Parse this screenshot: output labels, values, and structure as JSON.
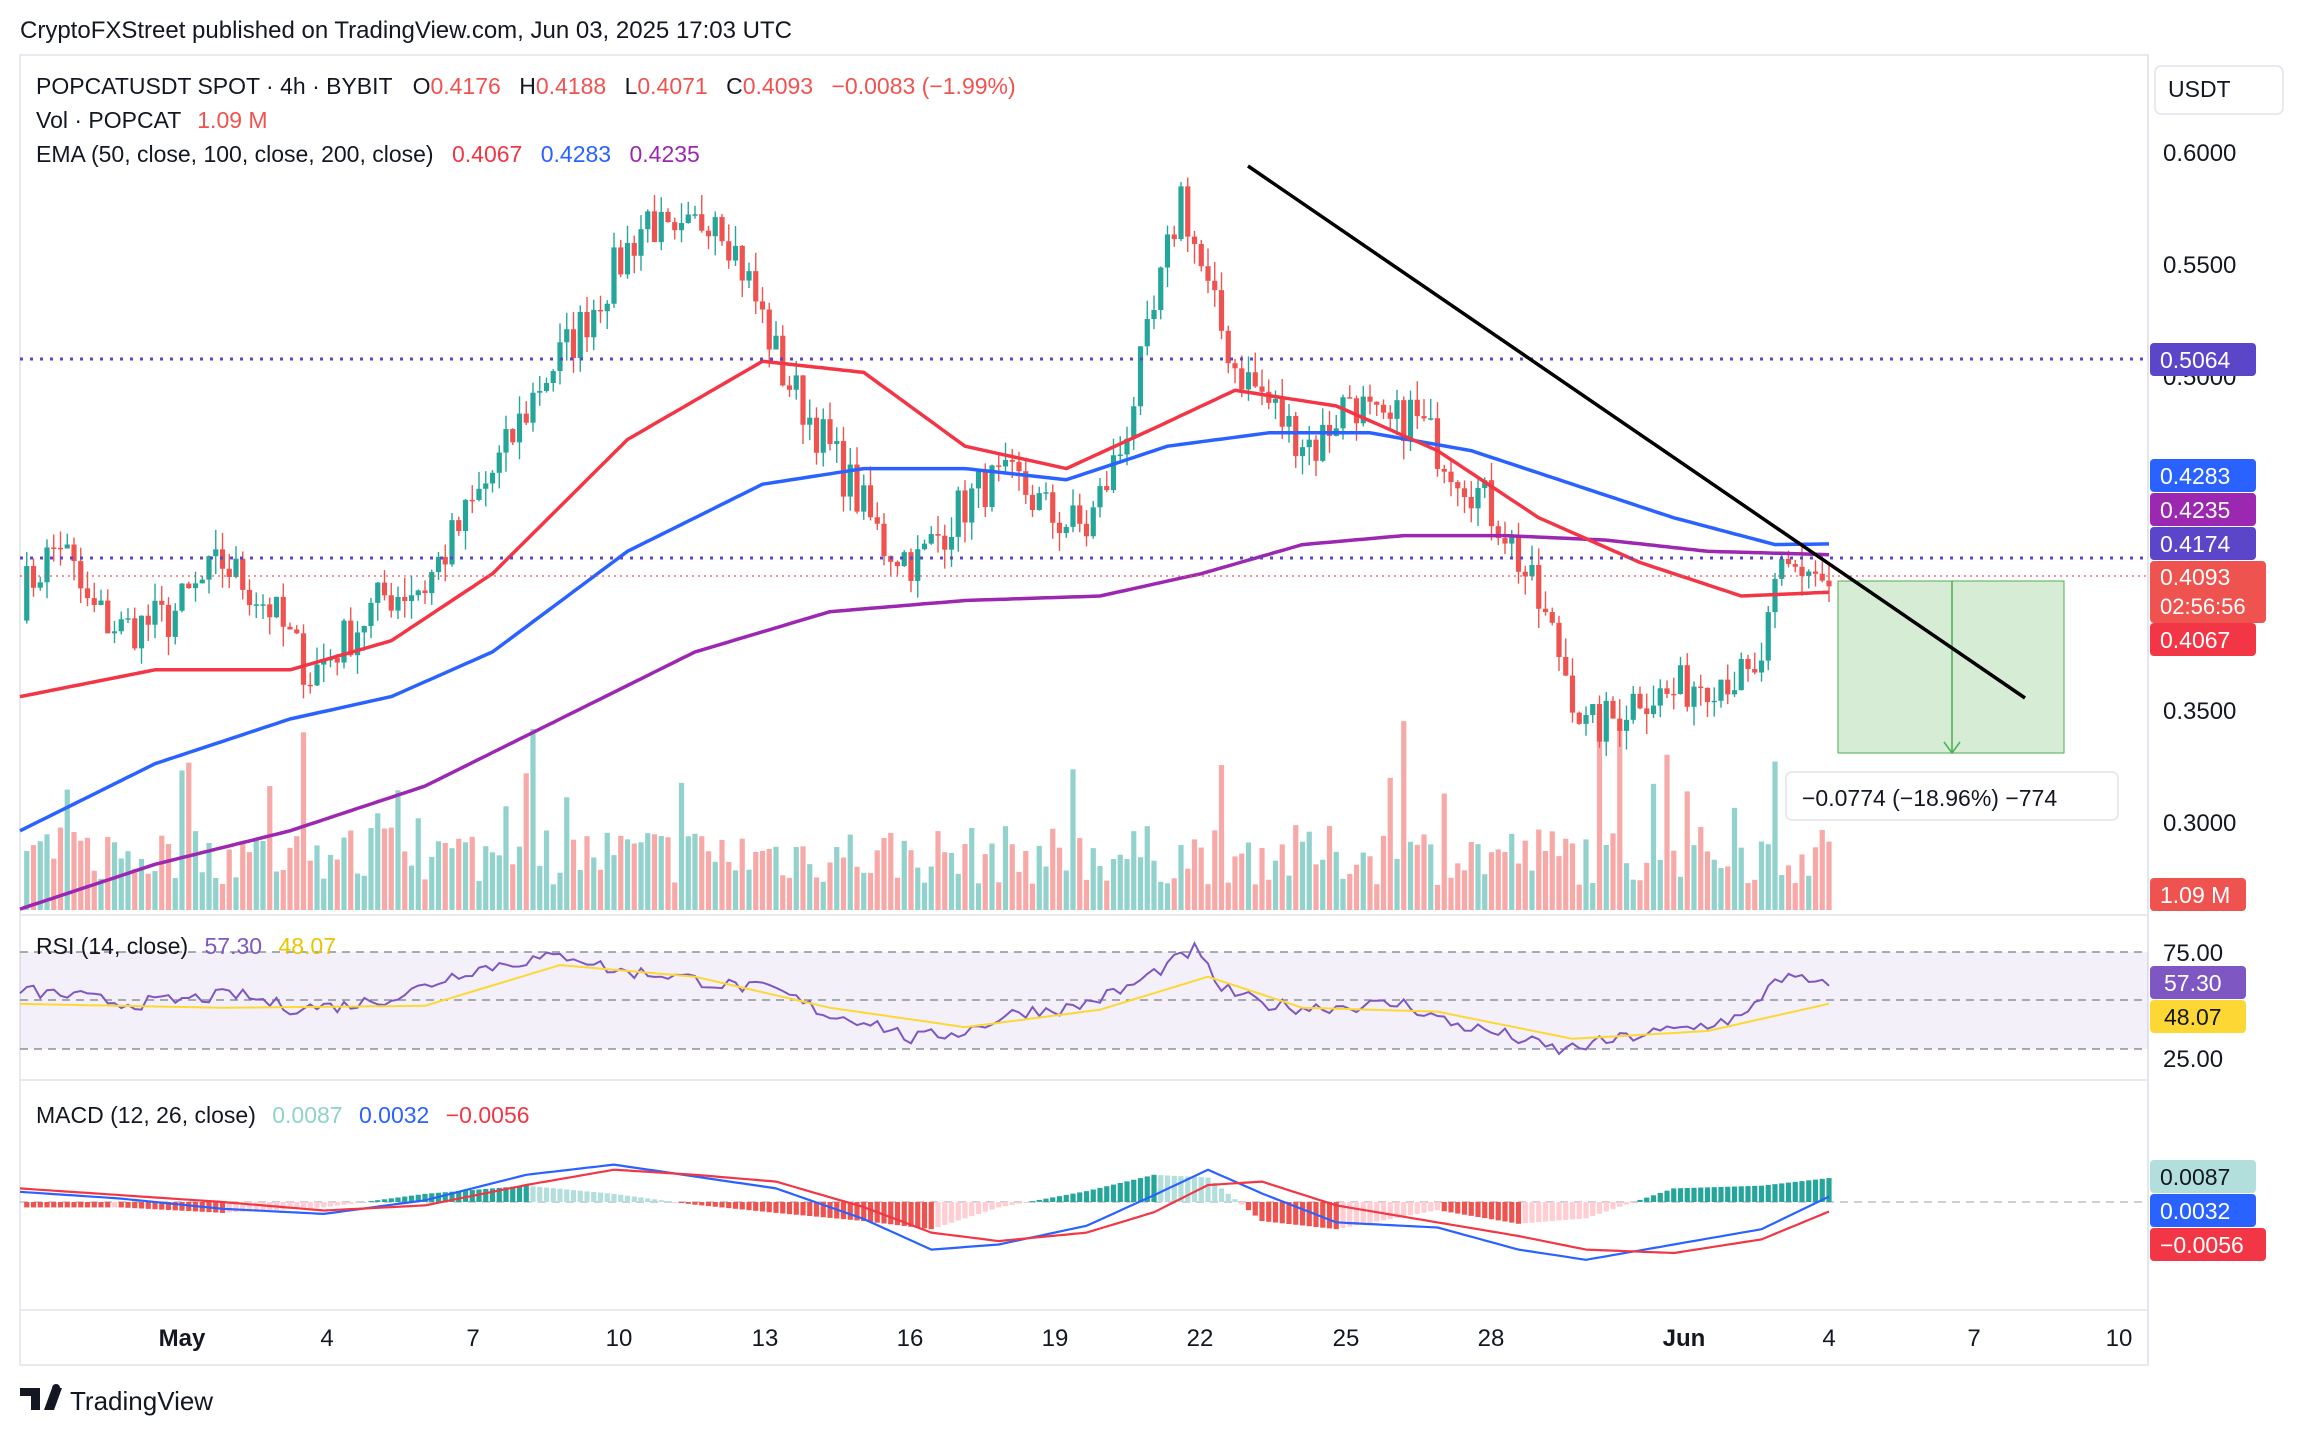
{
  "header": {
    "published_line": "CryptoFXStreet published on TradingView.com, Jun 03, 2025 17:03 UTC"
  },
  "legend": {
    "symbol": "POPCATUSDT SPOT · 4h · BYBIT",
    "o_label": "O",
    "o_value": "0.4176",
    "h_label": "H",
    "h_value": "0.4188",
    "l_label": "L",
    "l_value": "0.4071",
    "c_label": "C",
    "c_value": "0.4093",
    "change": "−0.0083 (−1.99%)",
    "vol_label": "Vol · POPCAT",
    "vol_value": "1.09 M",
    "ema_label": "EMA (50, close, 100, close, 200, close)",
    "ema50": "0.4067",
    "ema100": "0.4283",
    "ema200": "0.4235"
  },
  "axis": {
    "currency": "USDT",
    "price_ticks": [
      "0.6000",
      "0.5500",
      "0.5000",
      "0.3500",
      "0.3000"
    ],
    "rsi_ticks": [
      "75.00",
      "25.00"
    ],
    "time_ticks": [
      "May",
      "4",
      "7",
      "10",
      "13",
      "16",
      "19",
      "22",
      "25",
      "28",
      "Jun",
      "4",
      "7",
      "10"
    ]
  },
  "price_labels": {
    "resistance": "0.5064",
    "ema100": "0.4283",
    "ema200": "0.4235",
    "level": "0.4174",
    "last": "0.4093",
    "countdown": "02:56:56",
    "ema50": "0.4067",
    "volume": "1.09 M"
  },
  "measure": {
    "label": "−0.0774 (−18.96%) −774"
  },
  "rsi": {
    "label": "RSI (14, close)",
    "value": "57.30",
    "ma": "48.07"
  },
  "macd": {
    "label": "MACD (12, 26, close)",
    "hist": "0.0087",
    "macd": "0.0032",
    "signal": "−0.0056"
  },
  "footer": {
    "brand": "TradingView"
  },
  "colors": {
    "up": "#26a69a",
    "down": "#ef5350",
    "ema50": "#f23645",
    "ema100": "#2962ff",
    "ema200": "#9c27b0",
    "rsi": "#7e57c2",
    "rsi_ma": "#fdd835",
    "dotted_level": "#5b45c9",
    "trendline": "#000000",
    "target_zone": "#d6ecd4"
  },
  "chart_data": {
    "type": "candlestick",
    "symbol": "POPCATUSDT",
    "interval": "4h",
    "ylim": [
      0.265,
      0.625
    ],
    "x_dates": [
      "May",
      "4",
      "7",
      "10",
      "13",
      "16",
      "19",
      "22",
      "25",
      "28",
      "Jun",
      "4",
      "7",
      "10"
    ],
    "price_path": [
      [
        0,
        0.405
      ],
      [
        6,
        0.43
      ],
      [
        10,
        0.4
      ],
      [
        15,
        0.39
      ],
      [
        22,
        0.395
      ],
      [
        30,
        0.42
      ],
      [
        37,
        0.4
      ],
      [
        43,
        0.37
      ],
      [
        48,
        0.385
      ],
      [
        54,
        0.405
      ],
      [
        60,
        0.41
      ],
      [
        65,
        0.435
      ],
      [
        72,
        0.47
      ],
      [
        77,
        0.5
      ],
      [
        82,
        0.52
      ],
      [
        87,
        0.545
      ],
      [
        93,
        0.575
      ],
      [
        97,
        0.56
      ],
      [
        103,
        0.58
      ],
      [
        108,
        0.545
      ],
      [
        113,
        0.505
      ],
      [
        118,
        0.48
      ],
      [
        123,
        0.455
      ],
      [
        128,
        0.428
      ],
      [
        133,
        0.42
      ],
      [
        138,
        0.44
      ],
      [
        143,
        0.455
      ],
      [
        148,
        0.455
      ],
      [
        153,
        0.44
      ],
      [
        158,
        0.435
      ],
      [
        163,
        0.47
      ],
      [
        168,
        0.53
      ],
      [
        172,
        0.585
      ],
      [
        176,
        0.54
      ],
      [
        180,
        0.508
      ],
      [
        184,
        0.495
      ],
      [
        188,
        0.48
      ],
      [
        192,
        0.472
      ],
      [
        197,
        0.495
      ],
      [
        202,
        0.478
      ],
      [
        206,
        0.487
      ],
      [
        210,
        0.472
      ],
      [
        215,
        0.455
      ],
      [
        220,
        0.435
      ],
      [
        224,
        0.408
      ],
      [
        228,
        0.38
      ],
      [
        232,
        0.345
      ],
      [
        236,
        0.35
      ],
      [
        240,
        0.362
      ],
      [
        244,
        0.36
      ],
      [
        249,
        0.368
      ],
      [
        253,
        0.37
      ],
      [
        257,
        0.365
      ],
      [
        261,
        0.415
      ],
      [
        265,
        0.418
      ],
      [
        268,
        0.409
      ]
    ],
    "ema50": [
      [
        0,
        0.36
      ],
      [
        20,
        0.372
      ],
      [
        40,
        0.372
      ],
      [
        55,
        0.385
      ],
      [
        70,
        0.415
      ],
      [
        90,
        0.475
      ],
      [
        110,
        0.51
      ],
      [
        125,
        0.505
      ],
      [
        140,
        0.472
      ],
      [
        155,
        0.462
      ],
      [
        168,
        0.48
      ],
      [
        180,
        0.497
      ],
      [
        195,
        0.49
      ],
      [
        210,
        0.47
      ],
      [
        225,
        0.44
      ],
      [
        240,
        0.42
      ],
      [
        255,
        0.405
      ],
      [
        268,
        0.4067
      ]
    ],
    "ema100": [
      [
        0,
        0.3
      ],
      [
        20,
        0.33
      ],
      [
        40,
        0.35
      ],
      [
        55,
        0.36
      ],
      [
        70,
        0.38
      ],
      [
        90,
        0.425
      ],
      [
        110,
        0.455
      ],
      [
        125,
        0.462
      ],
      [
        140,
        0.462
      ],
      [
        155,
        0.457
      ],
      [
        170,
        0.472
      ],
      [
        185,
        0.478
      ],
      [
        200,
        0.478
      ],
      [
        215,
        0.47
      ],
      [
        230,
        0.455
      ],
      [
        245,
        0.44
      ],
      [
        260,
        0.428
      ],
      [
        268,
        0.4283
      ]
    ],
    "ema200": [
      [
        0,
        0.265
      ],
      [
        20,
        0.285
      ],
      [
        40,
        0.3
      ],
      [
        60,
        0.32
      ],
      [
        80,
        0.35
      ],
      [
        100,
        0.38
      ],
      [
        120,
        0.398
      ],
      [
        140,
        0.403
      ],
      [
        160,
        0.405
      ],
      [
        175,
        0.415
      ],
      [
        190,
        0.428
      ],
      [
        205,
        0.432
      ],
      [
        220,
        0.432
      ],
      [
        235,
        0.43
      ],
      [
        250,
        0.425
      ],
      [
        268,
        0.4235
      ]
    ],
    "resistance_level": 0.5064,
    "support_level": 0.4174,
    "trendline": [
      [
        173,
        0.59
      ],
      [
        304,
        0.355
      ]
    ],
    "target_box": {
      "x_from": 280,
      "x_to": 318,
      "from": 0.4093,
      "to": 0.3319
    },
    "rsi": {
      "ylim": [
        10,
        90
      ],
      "levels": [
        75,
        50,
        25
      ],
      "path": [
        [
          0,
          55
        ],
        [
          8,
          52
        ],
        [
          16,
          48
        ],
        [
          24,
          50
        ],
        [
          32,
          53
        ],
        [
          40,
          46
        ],
        [
          48,
          47
        ],
        [
          56,
          52
        ],
        [
          66,
          65
        ],
        [
          74,
          70
        ],
        [
          82,
          73
        ],
        [
          88,
          65
        ],
        [
          96,
          63
        ],
        [
          104,
          58
        ],
        [
          112,
          55
        ],
        [
          120,
          42
        ],
        [
          126,
          39
        ],
        [
          132,
          30
        ],
        [
          140,
          34
        ],
        [
          148,
          44
        ],
        [
          156,
          46
        ],
        [
          164,
          56
        ],
        [
          170,
          68
        ],
        [
          174,
          76
        ],
        [
          178,
          56
        ],
        [
          184,
          48
        ],
        [
          190,
          46
        ],
        [
          198,
          47
        ],
        [
          205,
          48
        ],
        [
          212,
          38
        ],
        [
          220,
          32
        ],
        [
          228,
          24
        ],
        [
          234,
          28
        ],
        [
          240,
          32
        ],
        [
          248,
          36
        ],
        [
          256,
          42
        ],
        [
          260,
          62
        ],
        [
          264,
          60
        ],
        [
          268,
          57.3
        ]
      ],
      "ma_path": [
        [
          0,
          48
        ],
        [
          30,
          46
        ],
        [
          60,
          47
        ],
        [
          80,
          68
        ],
        [
          100,
          62
        ],
        [
          120,
          46
        ],
        [
          140,
          36
        ],
        [
          160,
          45
        ],
        [
          176,
          62
        ],
        [
          190,
          46
        ],
        [
          210,
          44
        ],
        [
          230,
          30
        ],
        [
          250,
          34
        ],
        [
          268,
          48.07
        ]
      ]
    },
    "macd": {
      "ylim": [
        -0.04,
        0.03
      ],
      "macd_path": [
        [
          0,
          0.006
        ],
        [
          15,
          0.002
        ],
        [
          30,
          -0.004
        ],
        [
          45,
          -0.007
        ],
        [
          60,
          0.001
        ],
        [
          75,
          0.016
        ],
        [
          88,
          0.022
        ],
        [
          100,
          0.015
        ],
        [
          112,
          0.008
        ],
        [
          125,
          -0.01
        ],
        [
          135,
          -0.028
        ],
        [
          145,
          -0.025
        ],
        [
          158,
          -0.014
        ],
        [
          168,
          0.004
        ],
        [
          176,
          0.019
        ],
        [
          184,
          0.005
        ],
        [
          195,
          -0.012
        ],
        [
          210,
          -0.015
        ],
        [
          222,
          -0.028
        ],
        [
          232,
          -0.034
        ],
        [
          245,
          -0.025
        ],
        [
          258,
          -0.016
        ],
        [
          268,
          0.0032
        ]
      ],
      "signal_path": [
        [
          0,
          0.008
        ],
        [
          15,
          0.004
        ],
        [
          30,
          0.0
        ],
        [
          45,
          -0.005
        ],
        [
          60,
          -0.002
        ],
        [
          75,
          0.01
        ],
        [
          88,
          0.019
        ],
        [
          100,
          0.016
        ],
        [
          112,
          0.012
        ],
        [
          125,
          -0.003
        ],
        [
          135,
          -0.018
        ],
        [
          145,
          -0.023
        ],
        [
          158,
          -0.018
        ],
        [
          168,
          -0.006
        ],
        [
          176,
          0.01
        ],
        [
          184,
          0.012
        ],
        [
          195,
          -0.002
        ],
        [
          210,
          -0.012
        ],
        [
          222,
          -0.02
        ],
        [
          232,
          -0.028
        ],
        [
          245,
          -0.03
        ],
        [
          258,
          -0.022
        ],
        [
          268,
          -0.0056
        ]
      ],
      "hist_last": 0.0087
    }
  }
}
